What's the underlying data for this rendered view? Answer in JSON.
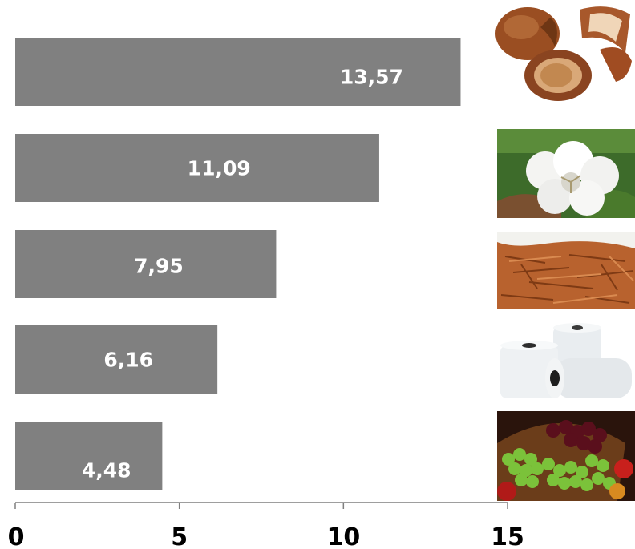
{
  "chart_data": {
    "type": "bar",
    "orientation": "horizontal",
    "categories": [
      "hazelnut-icon",
      "cotton-icon",
      "tobacco-icon",
      "yarn-spools-icon",
      "grapes-icon"
    ],
    "values": [
      13.57,
      11.09,
      7.95,
      6.16,
      4.48
    ],
    "value_labels": [
      "13,57",
      "11,09",
      "7,95",
      "6,16",
      "4,48"
    ],
    "xlim": [
      0,
      15
    ],
    "x_ticks": [
      0,
      5,
      10,
      15
    ],
    "x_tick_labels": [
      "0",
      "5",
      "10",
      "15"
    ],
    "title": "",
    "xlabel": "",
    "ylabel": "",
    "grid": false,
    "bar_color": "#808080",
    "label_color": "#ffffff",
    "axis_color": "#7f7f7f"
  }
}
